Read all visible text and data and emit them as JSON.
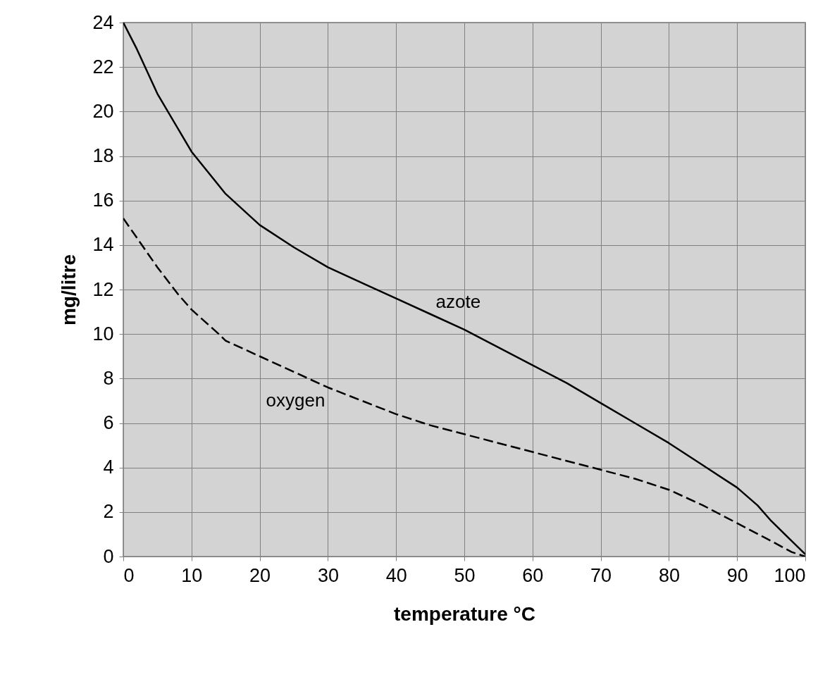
{
  "chart_data": {
    "type": "line",
    "xlabel": "temperature °C",
    "ylabel": "mg/litre",
    "xlim": [
      0,
      100
    ],
    "ylim": [
      0,
      24
    ],
    "xticks": [
      0,
      10,
      20,
      30,
      40,
      50,
      60,
      70,
      80,
      90,
      100
    ],
    "yticks": [
      0,
      2,
      4,
      6,
      8,
      10,
      12,
      14,
      16,
      18,
      20,
      22,
      24
    ],
    "grid": true,
    "legend": false,
    "series": [
      {
        "name": "azote",
        "color": "#000000",
        "line_style": "solid",
        "x": [
          0,
          2,
          5,
          10,
          15,
          20,
          25,
          30,
          35,
          40,
          45,
          50,
          55,
          60,
          65,
          70,
          75,
          80,
          85,
          90,
          93,
          95,
          98,
          100
        ],
        "values": [
          24,
          22.8,
          20.8,
          18.2,
          16.3,
          14.9,
          13.9,
          13.0,
          12.3,
          11.6,
          10.9,
          10.2,
          9.4,
          8.6,
          7.8,
          6.9,
          6.0,
          5.1,
          4.1,
          3.1,
          2.3,
          1.6,
          0.7,
          0.1
        ]
      },
      {
        "name": "oxygen",
        "color": "#000000",
        "line_style": "dashed",
        "x": [
          0,
          5,
          8,
          10,
          14,
          15,
          20,
          25,
          30,
          35,
          40,
          45,
          50,
          55,
          60,
          65,
          70,
          75,
          80,
          85,
          90,
          95,
          98,
          100
        ],
        "values": [
          15.2,
          13.0,
          11.8,
          11.1,
          10.0,
          9.7,
          9.0,
          8.3,
          7.6,
          7.0,
          6.4,
          5.9,
          5.5,
          5.1,
          4.7,
          4.3,
          3.9,
          3.5,
          3.0,
          2.3,
          1.5,
          0.7,
          0.2,
          0
        ]
      }
    ]
  }
}
